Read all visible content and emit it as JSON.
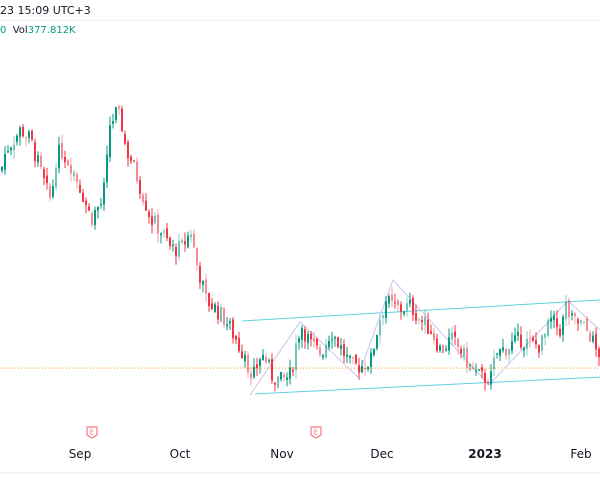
{
  "header": {
    "datetime": "23 15:09 UTC+3",
    "last_value": "0",
    "vol_label": "Vol",
    "vol_value": "377.812K"
  },
  "colors": {
    "up": "#089981",
    "down": "#f23645",
    "channel": "#5fd1e0",
    "zigzag": "#c9c2f0",
    "ref_line": "#f5b041",
    "earnings": "#f77c80"
  },
  "chart_data": {
    "type": "candlestick",
    "title": "",
    "xlabel": "",
    "ylabel": "",
    "ylim": [
      0,
      140
    ],
    "x_ticks": [
      {
        "label": "Sep",
        "t": 80,
        "bold": false
      },
      {
        "label": "Oct",
        "t": 180,
        "bold": false
      },
      {
        "label": "Nov",
        "t": 282,
        "bold": false
      },
      {
        "label": "Dec",
        "t": 382,
        "bold": false
      },
      {
        "label": "2023",
        "t": 485,
        "bold": true
      },
      {
        "label": "Feb",
        "t": 581,
        "bold": false
      }
    ],
    "x_range": [
      0,
      600
    ],
    "earnings_markers": [
      {
        "t": 92,
        "label": "E"
      },
      {
        "t": 316,
        "label": "E"
      }
    ],
    "close_keypoints": [
      [
        0,
        83
      ],
      [
        5,
        90
      ],
      [
        20,
        97
      ],
      [
        30,
        93
      ],
      [
        45,
        77
      ],
      [
        50,
        73
      ],
      [
        55,
        87
      ],
      [
        60,
        90
      ],
      [
        70,
        85
      ],
      [
        80,
        77
      ],
      [
        90,
        67
      ],
      [
        95,
        70
      ],
      [
        100,
        72
      ],
      [
        105,
        80
      ],
      [
        108,
        98
      ],
      [
        115,
        102
      ],
      [
        120,
        100
      ],
      [
        125,
        90
      ],
      [
        130,
        87
      ],
      [
        140,
        77
      ],
      [
        150,
        67
      ],
      [
        160,
        63
      ],
      [
        170,
        57
      ],
      [
        180,
        57
      ],
      [
        190,
        63
      ],
      [
        195,
        53
      ],
      [
        200,
        47
      ],
      [
        205,
        40
      ],
      [
        215,
        37
      ],
      [
        225,
        33
      ],
      [
        235,
        27
      ],
      [
        240,
        23
      ],
      [
        245,
        23
      ],
      [
        250,
        12
      ],
      [
        255,
        17
      ],
      [
        260,
        22
      ],
      [
        265,
        20
      ],
      [
        270,
        15
      ],
      [
        280,
        13
      ],
      [
        290,
        15
      ],
      [
        295,
        25
      ],
      [
        300,
        32
      ],
      [
        310,
        25
      ],
      [
        320,
        22
      ],
      [
        330,
        30
      ],
      [
        335,
        27
      ],
      [
        350,
        18
      ],
      [
        360,
        18
      ],
      [
        370,
        20
      ],
      [
        378,
        33
      ],
      [
        385,
        40
      ],
      [
        390,
        38
      ],
      [
        400,
        37
      ],
      [
        410,
        38
      ],
      [
        420,
        33
      ],
      [
        430,
        30
      ],
      [
        440,
        23
      ],
      [
        450,
        27
      ],
      [
        460,
        23
      ],
      [
        470,
        17
      ],
      [
        480,
        14
      ],
      [
        490,
        14
      ],
      [
        495,
        22
      ],
      [
        510,
        25
      ],
      [
        520,
        27
      ],
      [
        530,
        25
      ],
      [
        540,
        25
      ],
      [
        550,
        33
      ],
      [
        560,
        30
      ],
      [
        565,
        38
      ],
      [
        570,
        33
      ],
      [
        580,
        32
      ],
      [
        590,
        28
      ],
      [
        595,
        23
      ],
      [
        600,
        22
      ]
    ],
    "reference_level": 17.3,
    "channel": {
      "upper": [
        [
          242,
          33
        ],
        [
          600,
          40
        ]
      ],
      "lower": [
        [
          255,
          8.7
        ],
        [
          600,
          14.3
        ]
      ]
    },
    "zigzag": [
      [
        250,
        8.3
      ],
      [
        300,
        32.7
      ],
      [
        358,
        14.3
      ],
      [
        393,
        46.7
      ],
      [
        489,
        11.7
      ],
      [
        568,
        39.7
      ],
      [
        600,
        30
      ]
    ]
  }
}
